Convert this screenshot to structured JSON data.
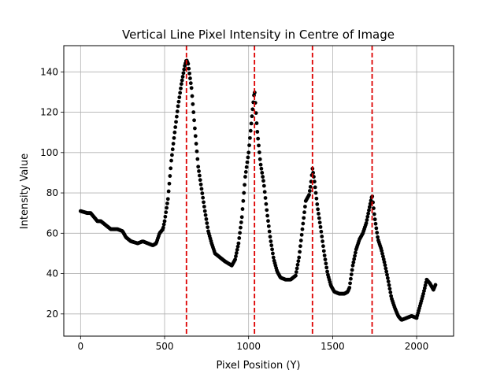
{
  "chart_data": {
    "type": "scatter",
    "title": "Vertical Line Pixel Intensity in Centre of Image",
    "xlabel": "Pixel Position (Y)",
    "ylabel": "Intensity Value",
    "xlim": [
      -100,
      2220
    ],
    "ylim": [
      9,
      153
    ],
    "xticks": [
      0,
      500,
      1000,
      1500,
      2000
    ],
    "yticks": [
      20,
      40,
      60,
      80,
      100,
      120,
      140
    ],
    "grid": true,
    "marker_color": "#000000",
    "vline_color": "#dd0000",
    "vlines": [
      630,
      1035,
      1380,
      1735
    ],
    "knots": [
      [
        0,
        71
      ],
      [
        40,
        70
      ],
      [
        60,
        70
      ],
      [
        80,
        68
      ],
      [
        100,
        66
      ],
      [
        120,
        66
      ],
      [
        150,
        64
      ],
      [
        180,
        62
      ],
      [
        220,
        62
      ],
      [
        250,
        61
      ],
      [
        270,
        58
      ],
      [
        300,
        56
      ],
      [
        340,
        55
      ],
      [
        370,
        56
      ],
      [
        400,
        55
      ],
      [
        430,
        54
      ],
      [
        450,
        55
      ],
      [
        470,
        60
      ],
      [
        490,
        62
      ],
      [
        500,
        66
      ],
      [
        520,
        77
      ],
      [
        540,
        96
      ],
      [
        560,
        110
      ],
      [
        580,
        123
      ],
      [
        600,
        134
      ],
      [
        620,
        143
      ],
      [
        630,
        146
      ],
      [
        640,
        144
      ],
      [
        660,
        132
      ],
      [
        680,
        112
      ],
      [
        700,
        93
      ],
      [
        720,
        82
      ],
      [
        740,
        71
      ],
      [
        760,
        61
      ],
      [
        780,
        55
      ],
      [
        800,
        50
      ],
      [
        830,
        48
      ],
      [
        860,
        46
      ],
      [
        880,
        45
      ],
      [
        900,
        44
      ],
      [
        920,
        47
      ],
      [
        940,
        55
      ],
      [
        960,
        68
      ],
      [
        980,
        88
      ],
      [
        1000,
        100
      ],
      [
        1020,
        118
      ],
      [
        1035,
        131
      ],
      [
        1050,
        112
      ],
      [
        1070,
        95
      ],
      [
        1090,
        85
      ],
      [
        1110,
        70
      ],
      [
        1130,
        57
      ],
      [
        1150,
        47
      ],
      [
        1170,
        41
      ],
      [
        1190,
        38
      ],
      [
        1220,
        37
      ],
      [
        1250,
        37
      ],
      [
        1280,
        39
      ],
      [
        1300,
        48
      ],
      [
        1320,
        62
      ],
      [
        1340,
        76
      ],
      [
        1360,
        79
      ],
      [
        1370,
        84
      ],
      [
        1380,
        92
      ],
      [
        1390,
        87
      ],
      [
        1410,
        73
      ],
      [
        1430,
        62
      ],
      [
        1450,
        50
      ],
      [
        1470,
        40
      ],
      [
        1490,
        34
      ],
      [
        1510,
        31
      ],
      [
        1540,
        30
      ],
      [
        1570,
        30
      ],
      [
        1590,
        31
      ],
      [
        1600,
        33
      ],
      [
        1620,
        44
      ],
      [
        1640,
        52
      ],
      [
        1660,
        57
      ],
      [
        1680,
        60
      ],
      [
        1700,
        65
      ],
      [
        1720,
        73
      ],
      [
        1735,
        79
      ],
      [
        1750,
        68
      ],
      [
        1770,
        57
      ],
      [
        1790,
        52
      ],
      [
        1810,
        45
      ],
      [
        1830,
        37
      ],
      [
        1850,
        28
      ],
      [
        1870,
        23
      ],
      [
        1890,
        19
      ],
      [
        1910,
        17
      ],
      [
        1940,
        18
      ],
      [
        1970,
        19
      ],
      [
        2000,
        18
      ],
      [
        2020,
        24
      ],
      [
        2040,
        30
      ],
      [
        2060,
        37
      ],
      [
        2080,
        35
      ],
      [
        2100,
        32
      ],
      [
        2115,
        35
      ]
    ]
  }
}
